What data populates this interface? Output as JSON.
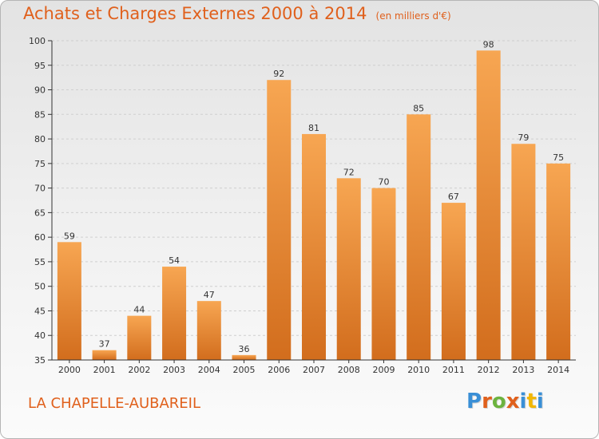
{
  "title": "Achats et Charges Externes 2000 à 2014",
  "subtitle": "(en milliers d'€)",
  "commune": "LA CHAPELLE-AUBAREIL",
  "logo": {
    "text": "Proxiti",
    "letters": [
      "P",
      "r",
      "o",
      "x",
      "i",
      "t",
      "i"
    ],
    "colors": [
      "#3a8fd6",
      "#e0601c",
      "#6cb33f",
      "#e0601c",
      "#3a8fd6",
      "#f2b705",
      "#3a8fd6"
    ]
  },
  "colors": {
    "accent": "#e0601c",
    "bar_top": "#f7a652",
    "bar_bottom": "#d26d1d",
    "grid": "#cfcfcf",
    "axis": "#333333"
  },
  "chart_data": {
    "type": "bar",
    "categories": [
      "2000",
      "2001",
      "2002",
      "2003",
      "2004",
      "2005",
      "2006",
      "2007",
      "2008",
      "2009",
      "2010",
      "2011",
      "2012",
      "2013",
      "2014"
    ],
    "values": [
      59,
      37,
      44,
      54,
      47,
      36,
      92,
      81,
      72,
      70,
      85,
      67,
      98,
      79,
      75
    ],
    "ylim": [
      35,
      100
    ],
    "yticks": [
      35,
      40,
      45,
      50,
      55,
      60,
      65,
      70,
      75,
      80,
      85,
      90,
      95,
      100
    ],
    "grid": true,
    "data_labels": true,
    "xlabel": "",
    "ylabel": ""
  }
}
